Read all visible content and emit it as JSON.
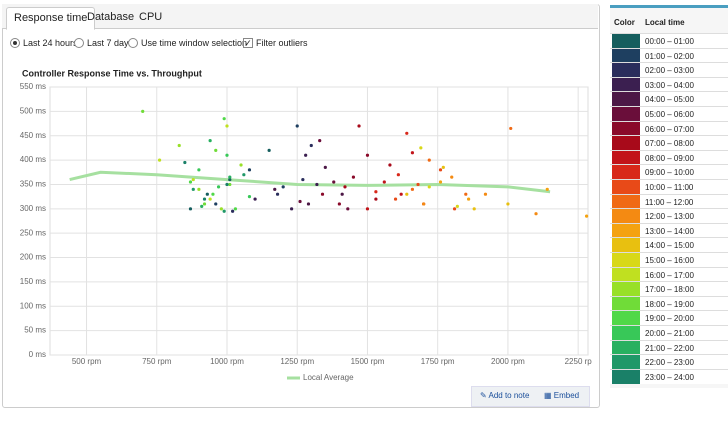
{
  "ui": {
    "tabs": [
      "Response time",
      "Database",
      "CPU"
    ],
    "options": [
      "Last 24 hours",
      "Last 7 days",
      "Use time window selection",
      "Filter outliers"
    ],
    "buttons": [
      "Add to note",
      "Embed"
    ],
    "table_headers": [
      "Color",
      "Local time"
    ]
  },
  "chart_data": {
    "type": "scatter",
    "title": "Controller Response Time vs. Throughput",
    "xlim": [
      370,
      2285
    ],
    "ylim": [
      0,
      550
    ],
    "xticks": [
      {
        "value": 500,
        "label": "500 rpm"
      },
      {
        "value": 750,
        "label": "750 rpm"
      },
      {
        "value": 1000,
        "label": "1000 rpm"
      },
      {
        "value": 1250,
        "label": "1250 rpm"
      },
      {
        "value": 1500,
        "label": "1500 rpm"
      },
      {
        "value": 1750,
        "label": "1750 rpm"
      },
      {
        "value": 2000,
        "label": "2000 rpm"
      },
      {
        "value": 2250,
        "label": "2250 rp"
      }
    ],
    "yticks": [
      {
        "value": 0,
        "label": "0 ms"
      },
      {
        "value": 50,
        "label": "50 ms"
      },
      {
        "value": 100,
        "label": "100 ms"
      },
      {
        "value": 150,
        "label": "150 ms"
      },
      {
        "value": 200,
        "label": "200 ms"
      },
      {
        "value": 250,
        "label": "250 ms"
      },
      {
        "value": 300,
        "label": "300 ms"
      },
      {
        "value": 350,
        "label": "350 ms"
      },
      {
        "value": 400,
        "label": "400 ms"
      },
      {
        "value": 450,
        "label": "450 ms"
      },
      {
        "value": 500,
        "label": "500 ms"
      },
      {
        "value": 550,
        "label": "550 ms"
      }
    ],
    "grid": true,
    "trend": {
      "name": "Local Average",
      "color": "#a6e0a0",
      "x": [
        440,
        550,
        750,
        1000,
        1250,
        1500,
        1750,
        2000,
        2150
      ],
      "y": [
        360,
        375,
        370,
        360,
        350,
        348,
        350,
        345,
        335
      ]
    },
    "series": [
      {
        "name": "00:00 – 01:00",
        "color": "#155e5e",
        "x": [
          930,
          1010,
          1150,
          870
        ],
        "y": [
          330,
          360,
          420,
          300
        ]
      },
      {
        "name": "01:00 – 02:00",
        "color": "#1e3f60",
        "x": [
          960,
          1080,
          1200,
          1250
        ],
        "y": [
          310,
          380,
          345,
          470
        ]
      },
      {
        "name": "02:00 – 03:00",
        "color": "#2a2d5c",
        "x": [
          1020,
          1180,
          1270,
          1300
        ],
        "y": [
          295,
          330,
          360,
          430
        ]
      },
      {
        "name": "03:00 – 04:00",
        "color": "#3b1f50",
        "x": [
          1100,
          1230,
          1320,
          1280
        ],
        "y": [
          320,
          300,
          350,
          410
        ]
      },
      {
        "name": "04:00 – 05:00",
        "color": "#4c1846",
        "x": [
          1170,
          1290,
          1350,
          1410
        ],
        "y": [
          340,
          310,
          385,
          330
        ]
      },
      {
        "name": "05:00 – 06:00",
        "color": "#6a0e3a",
        "x": [
          1260,
          1380,
          1330,
          1430
        ],
        "y": [
          315,
          355,
          440,
          300
        ]
      },
      {
        "name": "06:00 – 07:00",
        "color": "#8a0a2a",
        "x": [
          1340,
          1450,
          1500,
          1400
        ],
        "y": [
          330,
          365,
          410,
          310
        ]
      },
      {
        "name": "07:00 – 08:00",
        "color": "#a80a1a",
        "x": [
          1420,
          1530,
          1580,
          1470
        ],
        "y": [
          345,
          320,
          390,
          470
        ]
      },
      {
        "name": "08:00 – 09:00",
        "color": "#c2141a",
        "x": [
          1500,
          1560,
          1620,
          1660
        ],
        "y": [
          300,
          355,
          330,
          415
        ]
      },
      {
        "name": "09:00 – 10:00",
        "color": "#d8281a",
        "x": [
          1530,
          1610,
          1700,
          1640
        ],
        "y": [
          335,
          370,
          310,
          455
        ]
      },
      {
        "name": "10:00 – 11:00",
        "color": "#e84a18",
        "x": [
          1600,
          1680,
          1760,
          1810
        ],
        "y": [
          320,
          350,
          380,
          300
        ]
      },
      {
        "name": "11:00 – 12:00",
        "color": "#f06a15",
        "x": [
          1660,
          1720,
          1850,
          2010
        ],
        "y": [
          340,
          400,
          330,
          465
        ]
      },
      {
        "name": "12:00 – 13:00",
        "color": "#f48a12",
        "x": [
          1700,
          1800,
          1920,
          2100
        ],
        "y": [
          310,
          365,
          330,
          290
        ]
      },
      {
        "name": "13:00 – 14:00",
        "color": "#f4a210",
        "x": [
          1760,
          1860,
          2140,
          2280
        ],
        "y": [
          355,
          320,
          340,
          285
        ]
      },
      {
        "name": "14:00 – 15:00",
        "color": "#e8c010",
        "x": [
          1640,
          1770,
          1880,
          2000
        ],
        "y": [
          330,
          385,
          300,
          310
        ]
      },
      {
        "name": "15:00 – 16:00",
        "color": "#d8d818",
        "x": [
          1720,
          1820,
          1690
        ],
        "y": [
          345,
          305,
          425
        ]
      },
      {
        "name": "16:00 – 17:00",
        "color": "#c0e020",
        "x": [
          880,
          940,
          1000,
          760
        ],
        "y": [
          360,
          320,
          470,
          400
        ]
      },
      {
        "name": "17:00 – 18:00",
        "color": "#98e028",
        "x": [
          900,
          980,
          1050,
          830
        ],
        "y": [
          340,
          300,
          390,
          430
        ]
      },
      {
        "name": "18:00 – 19:00",
        "color": "#70dc38",
        "x": [
          920,
          960,
          1010,
          700
        ],
        "y": [
          310,
          420,
          350,
          500
        ]
      },
      {
        "name": "19:00 – 20:00",
        "color": "#50d848",
        "x": [
          870,
          950,
          1030,
          990
        ],
        "y": [
          355,
          330,
          300,
          485
        ]
      },
      {
        "name": "20:00 – 21:00",
        "color": "#38c858",
        "x": [
          900,
          970,
          1080,
          1000
        ],
        "y": [
          380,
          345,
          325,
          410
        ]
      },
      {
        "name": "21:00 – 22:00",
        "color": "#28b060",
        "x": [
          910,
          1010,
          940
        ],
        "y": [
          305,
          365,
          440
        ]
      },
      {
        "name": "22:00 – 23:00",
        "color": "#209868",
        "x": [
          880,
          990,
          1060
        ],
        "y": [
          340,
          295,
          370
        ]
      },
      {
        "name": "23:00 – 24:00",
        "color": "#1a8068",
        "x": [
          920,
          1000,
          850
        ],
        "y": [
          320,
          350,
          395
        ]
      }
    ]
  }
}
